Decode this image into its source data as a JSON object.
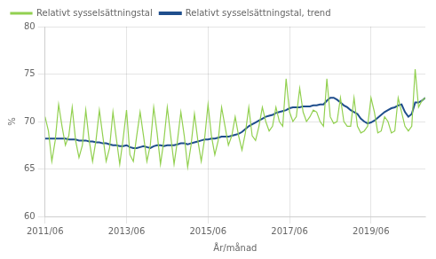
{
  "chart_data": {
    "type": "line",
    "xlabel": "År/månad",
    "ylabel": "%",
    "categories": [
      "2011/06",
      null,
      null,
      null,
      null,
      null,
      null,
      null,
      null,
      null,
      null,
      null,
      null,
      null,
      null,
      null,
      null,
      null,
      null,
      null,
      null,
      null,
      null,
      null,
      "2013/06",
      null,
      null,
      null,
      null,
      null,
      null,
      null,
      null,
      null,
      null,
      null,
      null,
      null,
      null,
      null,
      null,
      null,
      null,
      null,
      null,
      null,
      null,
      null,
      "2015/06",
      null,
      null,
      null,
      null,
      null,
      null,
      null,
      null,
      null,
      null,
      null,
      null,
      null,
      null,
      null,
      null,
      null,
      null,
      null,
      null,
      null,
      null,
      null,
      "2017/06",
      null,
      null,
      null,
      null,
      null,
      null,
      null,
      null,
      null,
      null,
      null,
      null,
      null,
      null,
      null,
      null,
      null,
      null,
      null,
      null,
      null,
      null,
      null,
      "2019/06",
      null,
      null,
      null,
      null,
      null,
      null,
      null,
      null,
      null,
      null,
      null,
      null,
      null,
      null,
      null,
      null
    ],
    "series": [
      {
        "name": "Relativt sysselsättningstal",
        "color": "#92d050",
        "values": [
          70.5,
          69.0,
          65.8,
          68.0,
          71.8,
          69.5,
          67.5,
          68.5,
          71.5,
          68.0,
          66.2,
          67.5,
          71.2,
          68.0,
          65.8,
          68.0,
          71.2,
          68.5,
          65.8,
          67.2,
          71.0,
          68.2,
          65.5,
          68.2,
          71.2,
          66.5,
          65.8,
          68.5,
          71.0,
          68.5,
          65.8,
          67.5,
          71.5,
          68.8,
          65.5,
          68.0,
          71.5,
          68.5,
          65.5,
          68.0,
          71.0,
          68.5,
          65.2,
          67.5,
          70.8,
          68.0,
          65.8,
          68.2,
          71.8,
          68.5,
          66.5,
          68.0,
          71.5,
          69.5,
          67.5,
          68.5,
          70.5,
          68.5,
          67.0,
          68.8,
          71.5,
          68.5,
          68.0,
          69.5,
          71.5,
          70.0,
          69.0,
          69.5,
          71.5,
          70.0,
          69.5,
          74.5,
          71.0,
          70.0,
          70.5,
          73.5,
          71.0,
          70.0,
          70.5,
          71.2,
          71.0,
          70.0,
          69.5,
          74.5,
          70.5,
          69.8,
          70.0,
          72.5,
          70.0,
          69.5,
          69.5,
          72.5,
          69.5,
          68.8,
          69.0,
          69.5,
          72.5,
          71.0,
          68.8,
          69.0,
          70.5,
          70.0,
          68.8,
          69.0,
          72.5,
          71.0,
          69.5,
          69.0,
          69.5,
          75.5,
          71.5,
          72.2,
          72.5
        ]
      },
      {
        "name": "Relativt sysselsättningstal, trend",
        "color": "#1f4e8c",
        "values": [
          68.2,
          68.2,
          68.2,
          68.2,
          68.2,
          68.2,
          68.2,
          68.1,
          68.1,
          68.1,
          68.0,
          68.0,
          68.0,
          67.9,
          67.9,
          67.8,
          67.8,
          67.7,
          67.7,
          67.6,
          67.5,
          67.5,
          67.4,
          67.4,
          67.5,
          67.3,
          67.2,
          67.2,
          67.3,
          67.4,
          67.3,
          67.2,
          67.4,
          67.5,
          67.5,
          67.4,
          67.5,
          67.5,
          67.5,
          67.6,
          67.7,
          67.7,
          67.6,
          67.7,
          67.8,
          67.9,
          68.0,
          68.1,
          68.1,
          68.2,
          68.2,
          68.3,
          68.4,
          68.4,
          68.4,
          68.5,
          68.6,
          68.7,
          68.9,
          69.2,
          69.5,
          69.7,
          69.9,
          70.1,
          70.3,
          70.5,
          70.6,
          70.7,
          70.9,
          71.0,
          71.1,
          71.2,
          71.4,
          71.5,
          71.5,
          71.5,
          71.6,
          71.6,
          71.6,
          71.7,
          71.7,
          71.8,
          71.8,
          72.2,
          72.5,
          72.5,
          72.3,
          72.0,
          71.7,
          71.5,
          71.2,
          71.0,
          70.8,
          70.3,
          70.0,
          69.8,
          69.9,
          70.1,
          70.4,
          70.7,
          71.0,
          71.2,
          71.4,
          71.5,
          71.7,
          71.8,
          71.0,
          70.5,
          70.8,
          72.0,
          72.0,
          72.2,
          72.5
        ]
      }
    ],
    "ylim": [
      60,
      80
    ],
    "yticks": [
      60,
      65,
      70,
      75,
      80
    ],
    "grid": true,
    "legend": "upper left"
  }
}
